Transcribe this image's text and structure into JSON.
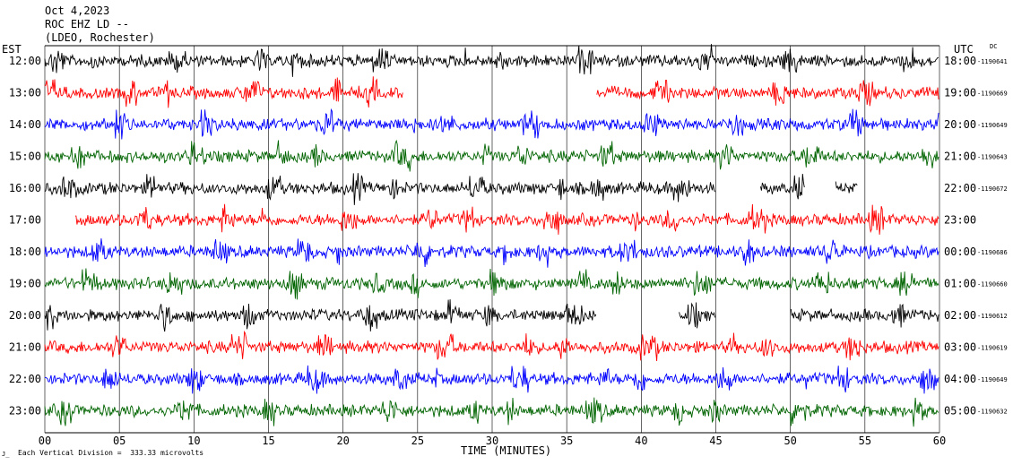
{
  "header": {
    "date": "Oct 4,2023",
    "station": "ROC EHZ LD --",
    "network": "(LDEO, Rochester)"
  },
  "left_timezone": "EST",
  "right_timezone": "UTC",
  "dc_label": "DC",
  "footer": {
    "icon": "J̲",
    "scale_note": "Each Vertical Division =  333.33 microvolts"
  },
  "colors": {
    "black": "#000000",
    "red": "#ff0000",
    "blue": "#0000ff",
    "green": "#006400",
    "grid": "#000000"
  },
  "chart_data": {
    "type": "line",
    "title": "",
    "xlabel": "TIME (MINUTES)",
    "xlim": [
      0,
      60
    ],
    "x_ticks": [
      "00",
      "05",
      "10",
      "15",
      "20",
      "25",
      "30",
      "35",
      "40",
      "45",
      "50",
      "55",
      "60"
    ],
    "gridlines_every_minutes": 5,
    "rows": [
      {
        "est": "12:00",
        "utc": "18:00",
        "dc": "-1190641",
        "color": "black",
        "gaps": []
      },
      {
        "est": "13:00",
        "utc": "19:00",
        "dc": "-1190669",
        "color": "red",
        "gaps": [
          [
            24,
            37
          ]
        ]
      },
      {
        "est": "14:00",
        "utc": "20:00",
        "dc": "-1190649",
        "color": "blue",
        "gaps": []
      },
      {
        "est": "15:00",
        "utc": "21:00",
        "dc": "-1190643",
        "color": "green",
        "gaps": []
      },
      {
        "est": "16:00",
        "utc": "22:00",
        "dc": "-1190672",
        "color": "black",
        "gaps": [
          [
            45,
            48
          ],
          [
            51,
            53
          ],
          [
            54.5,
            60
          ]
        ]
      },
      {
        "est": "17:00",
        "utc": "23:00",
        "dc": "",
        "color": "red",
        "gaps": [
          [
            0,
            2
          ]
        ]
      },
      {
        "est": "18:00",
        "utc": "00:00",
        "dc": "-1190686",
        "color": "blue",
        "gaps": []
      },
      {
        "est": "19:00",
        "utc": "01:00",
        "dc": "-1190660",
        "color": "green",
        "gaps": []
      },
      {
        "est": "20:00",
        "utc": "02:00",
        "dc": "-1190612",
        "color": "black",
        "gaps": [
          [
            37,
            42.5
          ],
          [
            45,
            50
          ]
        ]
      },
      {
        "est": "21:00",
        "utc": "03:00",
        "dc": "-1190619",
        "color": "red",
        "gaps": []
      },
      {
        "est": "22:00",
        "utc": "04:00",
        "dc": "-1190649",
        "color": "blue",
        "gaps": []
      },
      {
        "est": "23:00",
        "utc": "05:00",
        "dc": "-1190632",
        "color": "green",
        "gaps": []
      }
    ],
    "grid": true
  }
}
